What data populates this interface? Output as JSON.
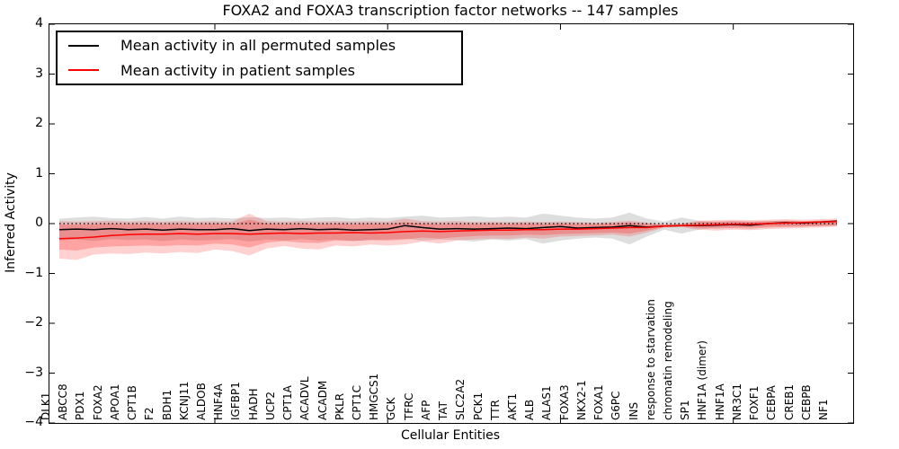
{
  "title": "FOXA2 and FOXA3 transcription factor networks -- 147 samples",
  "axes": {
    "ylabel": "Inferred Activity",
    "xlabel": "Cellular Entities",
    "yticks": [
      "4",
      "3",
      "2",
      "1",
      "0",
      "−1",
      "−2",
      "−3",
      "−4"
    ]
  },
  "legend": {
    "items": [
      {
        "label": "Mean activity in all permuted samples",
        "color": "#000000"
      },
      {
        "label": "Mean activity in patient samples",
        "color": "#ff0000"
      }
    ]
  },
  "chart_data": {
    "type": "line",
    "title": "FOXA2 and FOXA3 transcription factor networks -- 147 samples",
    "xlabel": "Cellular Entities",
    "ylabel": "Inferred Activity",
    "ylim": [
      -4,
      4
    ],
    "grid": false,
    "legend_position": "upper left",
    "zero_line": true,
    "xticks_positions": [
      10,
      20,
      30,
      40
    ],
    "categories": [
      "DLK1",
      "ABCC8",
      "PDX1",
      "FOXA2",
      "APOA1",
      "CPT1B",
      "F2",
      "BDH1",
      "KCNJ11",
      "ALDOB",
      "HNF4A",
      "IGFBP1",
      "HADH",
      "UCP2",
      "CPT1A",
      "ACADVL",
      "ACADM",
      "PKLR",
      "CPT1C",
      "HMGCS1",
      "GCK",
      "TFRC",
      "AFP",
      "TAT",
      "SLC2A2",
      "PCK1",
      "TTR",
      "AKT1",
      "ALB",
      "ALAS1",
      "FOXA3",
      "NKX2-1",
      "FOXA1",
      "G6PC",
      "INS",
      "response to starvation",
      "chromatin remodeling",
      "SP1",
      "HNF1A (dimer)",
      "HNF1A",
      "NR3C1",
      "FOXF1",
      "CEBPA",
      "CREB1",
      "CEBPB",
      "NF1"
    ],
    "series": [
      {
        "name": "Mean activity in all permuted samples",
        "color": "#000000",
        "values": [
          -0.12,
          -0.11,
          -0.12,
          -0.1,
          -0.12,
          -0.11,
          -0.13,
          -0.11,
          -0.12,
          -0.12,
          -0.1,
          -0.14,
          -0.11,
          -0.12,
          -0.1,
          -0.12,
          -0.11,
          -0.13,
          -0.12,
          -0.11,
          -0.04,
          -0.08,
          -0.11,
          -0.1,
          -0.11,
          -0.1,
          -0.09,
          -0.1,
          -0.08,
          -0.06,
          -0.09,
          -0.08,
          -0.07,
          -0.04,
          -0.07,
          -0.05,
          -0.04,
          -0.04,
          -0.03,
          -0.02,
          -0.03,
          0.0,
          0.02,
          0.01,
          0.03,
          0.05
        ]
      },
      {
        "name": "Mean activity in patient samples",
        "color": "#ff0000",
        "values": [
          -0.3,
          -0.29,
          -0.27,
          -0.24,
          -0.22,
          -0.21,
          -0.21,
          -0.2,
          -0.21,
          -0.2,
          -0.2,
          -0.21,
          -0.2,
          -0.19,
          -0.2,
          -0.19,
          -0.19,
          -0.18,
          -0.19,
          -0.18,
          -0.16,
          -0.15,
          -0.16,
          -0.15,
          -0.14,
          -0.13,
          -0.13,
          -0.12,
          -0.12,
          -0.11,
          -0.11,
          -0.1,
          -0.09,
          -0.08,
          -0.08,
          -0.05,
          -0.04,
          -0.03,
          -0.02,
          -0.01,
          -0.01,
          0.0,
          0.01,
          0.02,
          0.03,
          0.04
        ]
      }
    ],
    "bands": [
      {
        "name": "permuted-samples-range",
        "color": "#000000",
        "alpha": 0.13,
        "upper": [
          0.1,
          0.12,
          0.14,
          0.11,
          0.1,
          0.13,
          0.1,
          0.14,
          0.11,
          0.12,
          0.1,
          0.13,
          0.11,
          0.12,
          0.1,
          0.12,
          0.13,
          0.1,
          0.12,
          0.11,
          0.14,
          0.16,
          0.12,
          0.13,
          0.15,
          0.12,
          0.14,
          0.12,
          0.2,
          0.16,
          0.12,
          0.1,
          0.12,
          0.22,
          0.1,
          0.04,
          0.12,
          0.06,
          0.04,
          0.05,
          0.04,
          0.05,
          0.06,
          0.05,
          0.06,
          0.07
        ],
        "lower": [
          -0.34,
          -0.32,
          -0.35,
          -0.31,
          -0.33,
          -0.32,
          -0.35,
          -0.32,
          -0.34,
          -0.33,
          -0.31,
          -0.36,
          -0.32,
          -0.34,
          -0.31,
          -0.34,
          -0.32,
          -0.35,
          -0.33,
          -0.32,
          -0.3,
          -0.34,
          -0.32,
          -0.33,
          -0.36,
          -0.32,
          -0.34,
          -0.31,
          -0.4,
          -0.34,
          -0.3,
          -0.28,
          -0.3,
          -0.42,
          -0.26,
          -0.12,
          -0.2,
          -0.12,
          -0.08,
          -0.08,
          -0.07,
          -0.06,
          -0.05,
          -0.06,
          -0.05,
          -0.04
        ]
      },
      {
        "name": "patient-samples-range-outer",
        "color": "#ff0000",
        "alpha": 0.18,
        "upper": [
          0.05,
          0.04,
          0.05,
          0.06,
          0.04,
          0.05,
          0.04,
          0.05,
          0.04,
          0.05,
          0.04,
          0.2,
          0.05,
          0.04,
          0.05,
          0.04,
          0.05,
          0.04,
          0.05,
          0.04,
          0.1,
          0.05,
          0.04,
          0.05,
          0.03,
          0.04,
          0.03,
          0.04,
          0.03,
          0.04,
          0.03,
          0.02,
          0.03,
          0.06,
          0.02,
          -0.01,
          0.0,
          0.06,
          0.07,
          0.08,
          0.07,
          0.08,
          0.09,
          0.08,
          0.09,
          0.1
        ],
        "lower": [
          -0.7,
          -0.73,
          -0.62,
          -0.6,
          -0.61,
          -0.58,
          -0.6,
          -0.57,
          -0.59,
          -0.52,
          -0.55,
          -0.64,
          -0.5,
          -0.45,
          -0.5,
          -0.52,
          -0.44,
          -0.46,
          -0.42,
          -0.44,
          -0.42,
          -0.36,
          -0.4,
          -0.34,
          -0.32,
          -0.3,
          -0.31,
          -0.28,
          -0.3,
          -0.26,
          -0.25,
          -0.24,
          -0.22,
          -0.26,
          -0.18,
          -0.08,
          -0.07,
          -0.12,
          -0.14,
          -0.12,
          -0.13,
          -0.11,
          -0.1,
          -0.09,
          -0.08,
          -0.06
        ]
      },
      {
        "name": "patient-samples-range-inner",
        "color": "#ff0000",
        "alpha": 0.22,
        "upper": [
          -0.02,
          -0.02,
          -0.01,
          0.0,
          -0.01,
          0.0,
          -0.01,
          0.0,
          -0.01,
          0.0,
          -0.01,
          0.08,
          0.0,
          -0.01,
          0.0,
          -0.01,
          0.0,
          -0.01,
          0.0,
          -0.01,
          0.03,
          0.0,
          -0.01,
          0.0,
          -0.01,
          0.0,
          -0.01,
          0.0,
          -0.01,
          0.0,
          -0.01,
          -0.01,
          0.0,
          0.02,
          -0.01,
          -0.02,
          -0.01,
          0.03,
          0.04,
          0.05,
          0.04,
          0.05,
          0.06,
          0.05,
          0.06,
          0.07
        ],
        "lower": [
          -0.52,
          -0.54,
          -0.48,
          -0.46,
          -0.45,
          -0.44,
          -0.45,
          -0.43,
          -0.44,
          -0.4,
          -0.42,
          -0.48,
          -0.38,
          -0.35,
          -0.38,
          -0.39,
          -0.34,
          -0.35,
          -0.33,
          -0.34,
          -0.32,
          -0.28,
          -0.3,
          -0.27,
          -0.25,
          -0.24,
          -0.24,
          -0.22,
          -0.23,
          -0.21,
          -0.2,
          -0.19,
          -0.18,
          -0.2,
          -0.14,
          -0.07,
          -0.06,
          -0.09,
          -0.1,
          -0.09,
          -0.1,
          -0.08,
          -0.07,
          -0.06,
          -0.05,
          -0.04
        ]
      }
    ]
  }
}
